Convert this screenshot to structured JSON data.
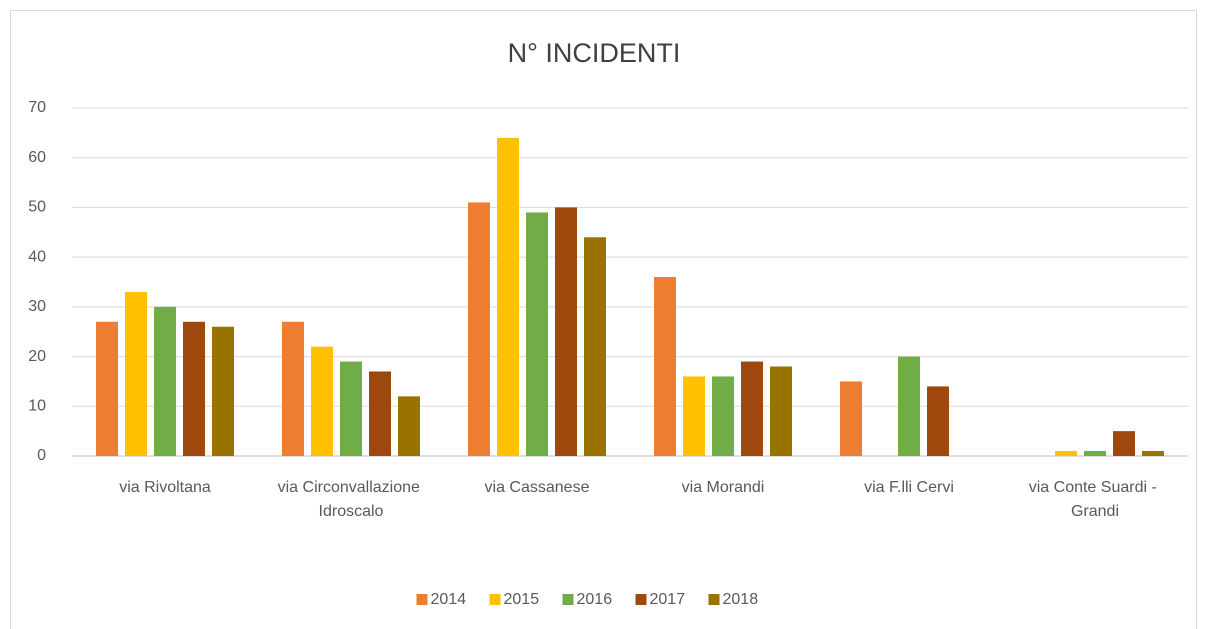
{
  "chart_data": {
    "type": "bar",
    "title": "N° INCIDENTI",
    "categories": [
      "via Rivoltana",
      "via Circonvallazione Idroscalo",
      "via Cassanese",
      "via Morandi",
      "via F.lli Cervi",
      "via Conte Suardi - Grandi"
    ],
    "series": [
      {
        "name": "2014",
        "color": "#ED7D31",
        "values": [
          27,
          27,
          51,
          36,
          15,
          0
        ]
      },
      {
        "name": "2015",
        "color": "#FFC000",
        "values": [
          33,
          22,
          64,
          16,
          0,
          1
        ]
      },
      {
        "name": "2016",
        "color": "#70AD47",
        "values": [
          30,
          19,
          49,
          16,
          20,
          1
        ]
      },
      {
        "name": "2017",
        "color": "#9E480E",
        "values": [
          27,
          17,
          50,
          19,
          14,
          5
        ]
      },
      {
        "name": "2018",
        "color": "#997300",
        "values": [
          26,
          12,
          44,
          18,
          0,
          1
        ]
      }
    ],
    "ylim": [
      0,
      70
    ],
    "yticks": [
      0,
      10,
      20,
      30,
      40,
      50,
      60,
      70
    ],
    "grid": true,
    "legend": "bottom"
  }
}
